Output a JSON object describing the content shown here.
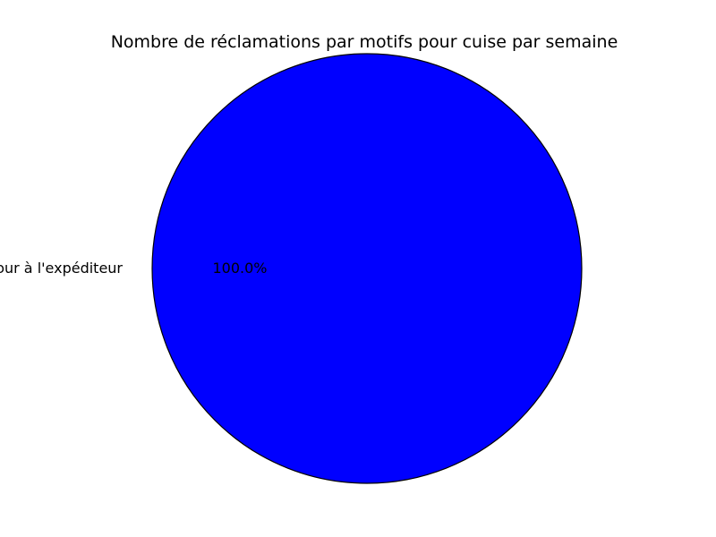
{
  "chart_data": {
    "type": "pie",
    "title": "Nombre de réclamations par motifs pour cuise par semaine",
    "labels": [
      "Retour à l'expéditeur"
    ],
    "values": [
      1
    ],
    "percent_labels": [
      "100.0%"
    ],
    "colors": [
      "#0000ff"
    ],
    "edge_color": "#000000",
    "legend": "none"
  }
}
